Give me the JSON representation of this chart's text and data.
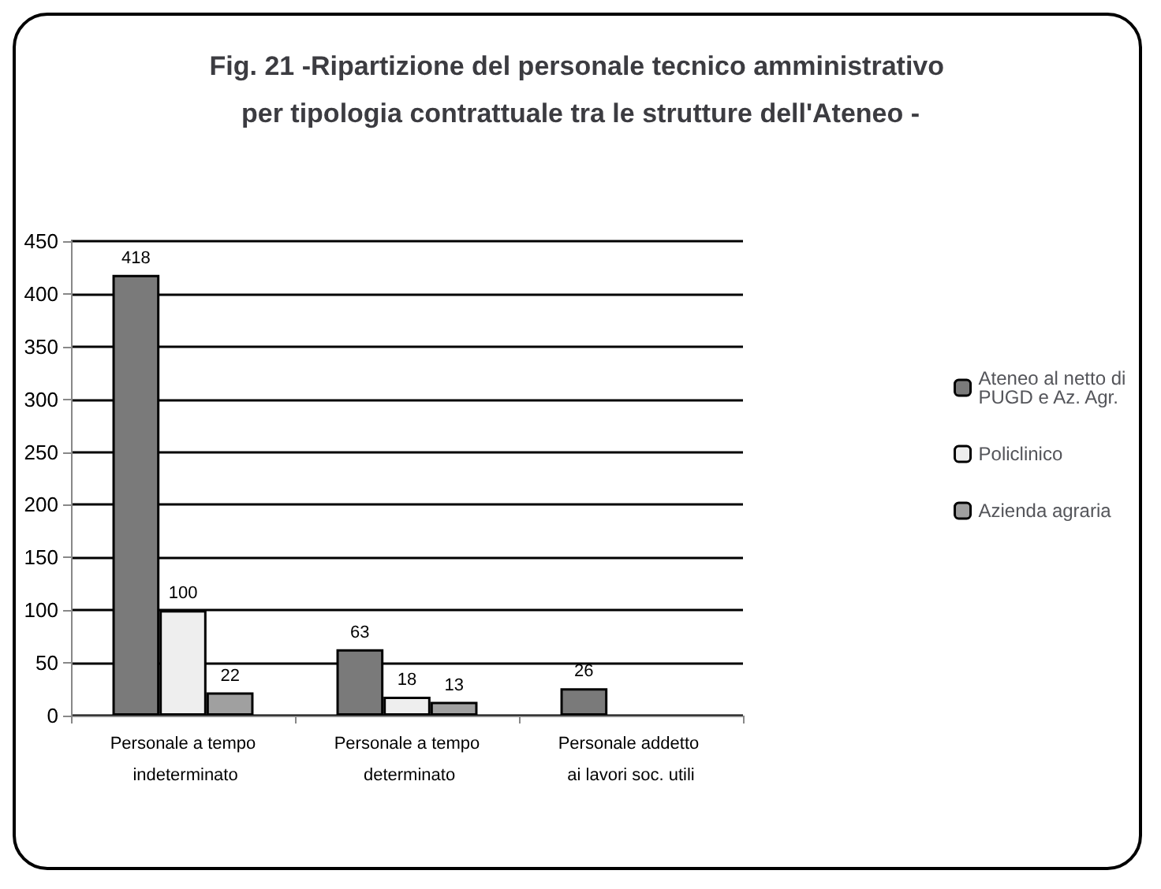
{
  "chart_data": {
    "type": "bar",
    "title": "Fig. 21 -Ripartizione del personale tecnico amministrativo per tipologia contrattuale tra le strutture dell'Ateneo -",
    "categories": [
      "Personale a tempo indeterminato",
      "Personale a tempo determinato",
      "Personale addetto ai lavori soc. utili"
    ],
    "series": [
      {
        "name": "Ateneo al netto di PUGD e Az. Agr.",
        "color": "#7a7a7a",
        "values": [
          418,
          63,
          26
        ]
      },
      {
        "name": "Policlinico",
        "color": "#eeeeee",
        "values": [
          100,
          18,
          null
        ]
      },
      {
        "name": "Azienda agraria",
        "color": "#a0a0a0",
        "values": [
          22,
          13,
          null
        ]
      }
    ],
    "ylim": [
      0,
      450
    ],
    "yticks": [
      0,
      50,
      100,
      150,
      200,
      250,
      300,
      350,
      400,
      450
    ],
    "grid": "y",
    "legend": "right",
    "data_labels": true
  }
}
